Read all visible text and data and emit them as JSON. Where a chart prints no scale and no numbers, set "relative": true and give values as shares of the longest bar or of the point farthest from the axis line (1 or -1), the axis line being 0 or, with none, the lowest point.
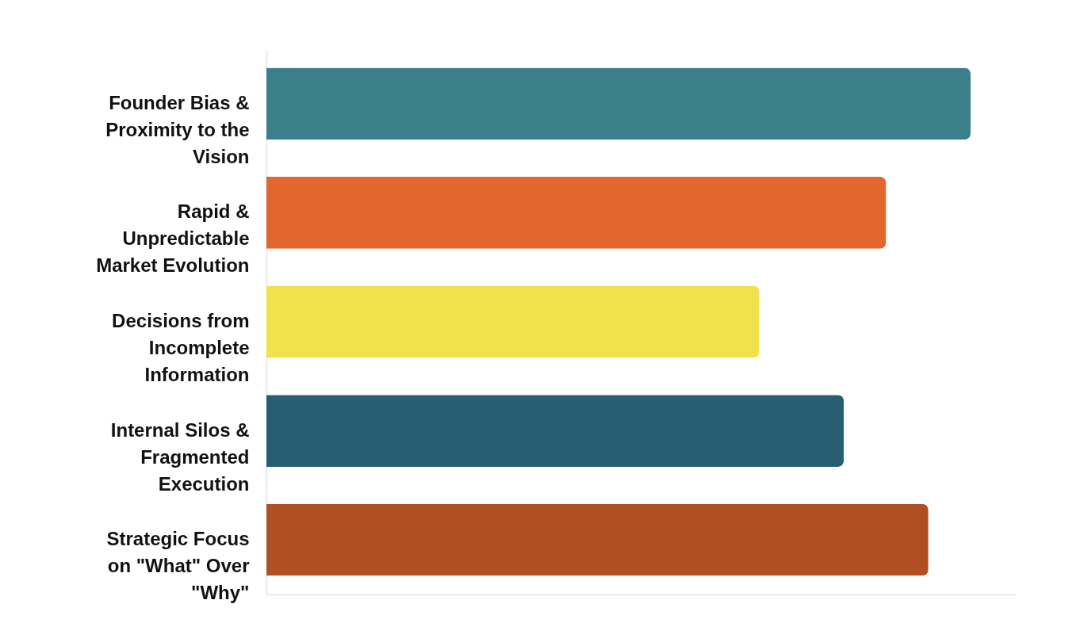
{
  "chart_data": {
    "type": "bar",
    "orientation": "horizontal",
    "relative": true,
    "categories": [
      "Founder Bias & Proximity to the Vision",
      "Rapid & Unpredictable Market Evolution",
      "Decisions from Incomplete Information",
      "Internal Silos & Fragmented Execution",
      "Strategic Focus on \"What\" Over \"Why\""
    ],
    "values": [
      1,
      0.88,
      0.7,
      0.82,
      0.94
    ],
    "colors": [
      "#3a7f8a",
      "#e2662e",
      "#f1e24b",
      "#275e72",
      "#b05022"
    ]
  }
}
